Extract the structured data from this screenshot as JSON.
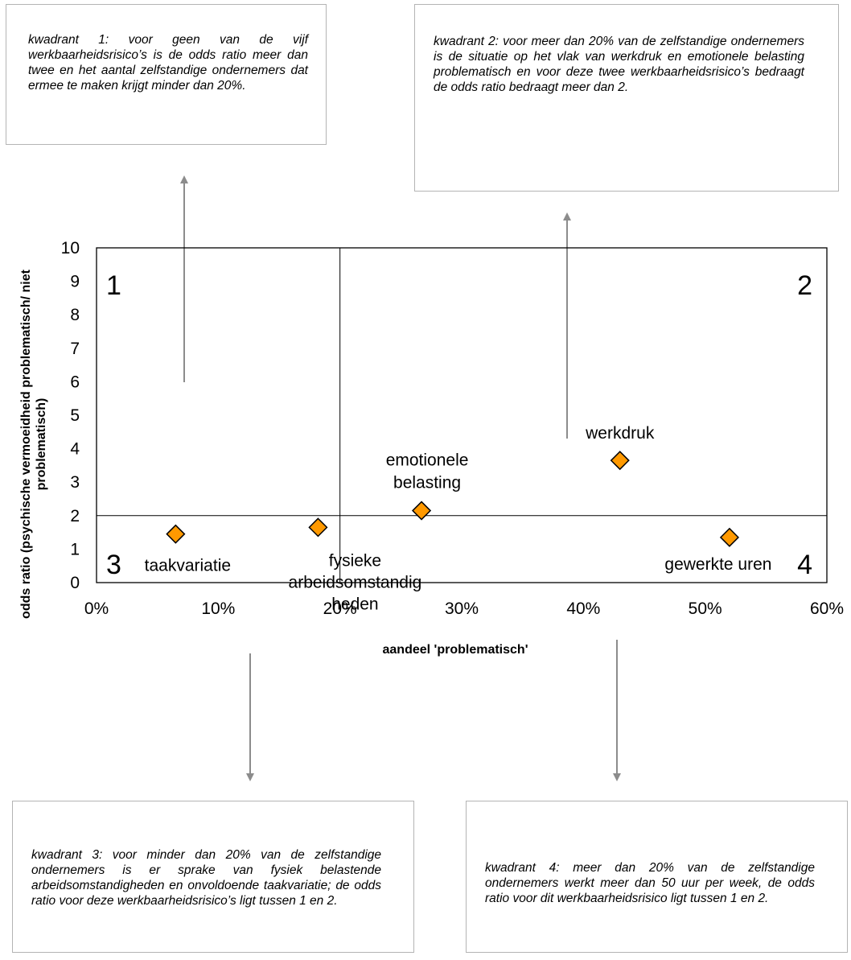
{
  "boxes": {
    "q1": "kwadrant 1: voor geen van de vijf werkbaarheidsrisico’s is de odds ratio meer dan twee en het aantal zelfstandige ondernemers dat ermee te maken krijgt minder dan 20%.",
    "q2": "kwadrant 2: voor meer dan 20% van de zelfstandige ondernemers is de situatie op het vlak van werkdruk en emotionele belasting problematisch en voor deze twee werkbaarheidsrisico’s bedraagt de odds ratio bedraagt meer dan 2.",
    "q3": "kwadrant 3: voor minder dan 20% van de zelfstandige ondernemers is er sprake van fysiek belastende arbeidsomstandigheden en onvoldoende taakvariatie; de odds ratio voor deze werkbaarheidsrisico’s ligt tussen 1 en 2.",
    "q4": "kwadrant 4: meer dan 20% van de zelfstandige ondernemers werkt meer dan 50 uur per week, de odds ratio voor dit werkbaarheidsrisico ligt tussen 1 en 2."
  },
  "chart_data": {
    "type": "scatter",
    "xlabel": "aandeel 'problematisch'",
    "ylabel_lines": [
      "odds ratio (psychische vermoeidheid problematisch/ niet",
      "problematisch)"
    ],
    "xlim": [
      0,
      0.6
    ],
    "ylim": [
      0,
      10
    ],
    "x_ticks": [
      0,
      0.1,
      0.2,
      0.3,
      0.4,
      0.5,
      0.6
    ],
    "x_tick_labels": [
      "0%",
      "10%",
      "20%",
      "30%",
      "40%",
      "50%",
      "60%"
    ],
    "y_ticks": [
      0,
      1,
      2,
      3,
      4,
      5,
      6,
      7,
      8,
      9,
      10
    ],
    "y_tick_labels": [
      "0",
      "1",
      "2",
      "3",
      "4",
      "5",
      "6",
      "7",
      "8",
      "9",
      "10"
    ],
    "reference_lines": {
      "x": 0.2,
      "y": 2
    },
    "quadrant_labels": [
      "1",
      "2",
      "3",
      "4"
    ],
    "marker_color": "#FF9900",
    "marker_stroke": "#000000",
    "points": [
      {
        "label": "taakvariatie",
        "x": 0.065,
        "y": 1.45
      },
      {
        "label": "fysieke arbeidsomstandigheden",
        "label_lines": [
          "fysieke",
          "arbeidsomstandig",
          "heden"
        ],
        "x": 0.182,
        "y": 1.65
      },
      {
        "label": "emotionele belasting",
        "label_lines": [
          "emotionele",
          "belasting"
        ],
        "x": 0.267,
        "y": 2.15
      },
      {
        "label": "werkdruk",
        "x": 0.43,
        "y": 3.65
      },
      {
        "label": "gewerkte uren",
        "x": 0.52,
        "y": 1.35
      }
    ]
  }
}
